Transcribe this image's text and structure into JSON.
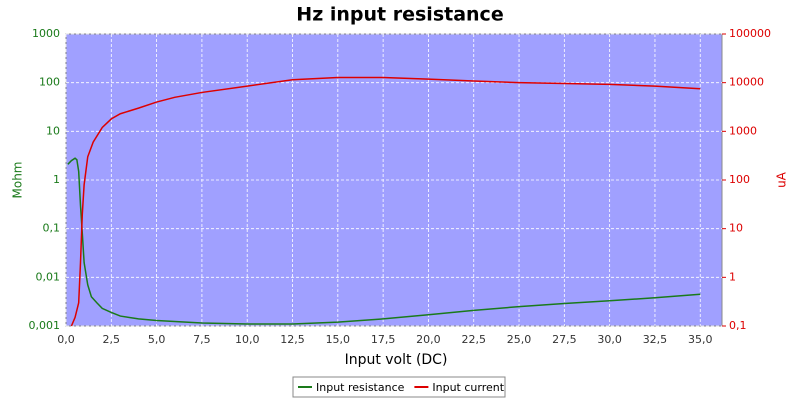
{
  "chart_data": {
    "type": "line",
    "title": "Hz input resistance",
    "xlabel": "Input volt (DC)",
    "ylabel": "Mohm",
    "y2label": "uA",
    "xlim": [
      0,
      36.2
    ],
    "xticks": [
      {
        "value": 0,
        "label": "0,0"
      },
      {
        "value": 2.5,
        "label": "2,5"
      },
      {
        "value": 5,
        "label": "5,0"
      },
      {
        "value": 7.5,
        "label": "7,5"
      },
      {
        "value": 10,
        "label": "10,0"
      },
      {
        "value": 12.5,
        "label": "12,5"
      },
      {
        "value": 15,
        "label": "15,0"
      },
      {
        "value": 17.5,
        "label": "17,5"
      },
      {
        "value": 20,
        "label": "20,0"
      },
      {
        "value": 22.5,
        "label": "22,5"
      },
      {
        "value": 25,
        "label": "25,0"
      },
      {
        "value": 27.5,
        "label": "27,5"
      },
      {
        "value": 30,
        "label": "30,0"
      },
      {
        "value": 32.5,
        "label": "32,5"
      },
      {
        "value": 35,
        "label": "35,0"
      }
    ],
    "ylim": [
      0.001,
      1000
    ],
    "ylog": true,
    "yticks": [
      {
        "value": 0.001,
        "label": "0,001"
      },
      {
        "value": 0.01,
        "label": "0,01"
      },
      {
        "value": 0.1,
        "label": "0,1"
      },
      1,
      10,
      100,
      1000
    ],
    "y2lim": [
      0.1,
      100000
    ],
    "y2log": true,
    "y2ticks": [
      {
        "value": 0.1,
        "label": "0,1"
      },
      1,
      10,
      100,
      1000,
      10000,
      100000
    ],
    "grid": true,
    "legend": "bottom",
    "series": [
      {
        "name": "Input resistance",
        "color": "#1a7a1a",
        "x": [
          0.1,
          0.3,
          0.5,
          0.6,
          0.7,
          0.8,
          0.9,
          1.0,
          1.2,
          1.4,
          1.7,
          2.0,
          2.5,
          3,
          4,
          5,
          7.5,
          10,
          12.5,
          15,
          17.5,
          20,
          22.5,
          25,
          27.5,
          30,
          32.5,
          35
        ],
        "values": [
          2.1,
          2.5,
          2.8,
          2.6,
          1.5,
          0.3,
          0.08,
          0.02,
          0.007,
          0.004,
          0.003,
          0.0023,
          0.0019,
          0.0016,
          0.0014,
          0.0013,
          0.00115,
          0.0011,
          0.0011,
          0.0012,
          0.0014,
          0.0017,
          0.0021,
          0.0025,
          0.0029,
          0.0033,
          0.0038,
          0.0045
        ]
      },
      {
        "name": "Input current",
        "color": "#dd0000",
        "axis": "y2",
        "x": [
          0.3,
          0.5,
          0.7,
          0.8,
          0.9,
          1.0,
          1.2,
          1.5,
          2,
          2.5,
          3,
          4,
          5,
          6,
          7.5,
          10,
          12.5,
          15,
          17.5,
          20,
          22.5,
          25,
          27.5,
          30,
          32.5,
          35
        ],
        "values": [
          0.1,
          0.15,
          0.3,
          2,
          20,
          80,
          300,
          600,
          1200,
          1800,
          2300,
          3000,
          4000,
          5000,
          6300,
          8500,
          11500,
          12800,
          12800,
          11800,
          10800,
          10000,
          9600,
          9200,
          8500,
          7500
        ]
      }
    ]
  }
}
